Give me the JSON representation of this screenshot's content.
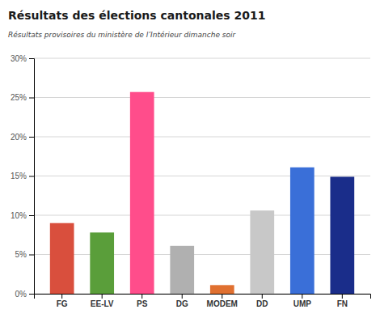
{
  "chart_data": {
    "type": "bar",
    "title": "Résultats des élections cantonales 2011",
    "subtitle": "Résultats provisoires du ministère de l’Intérieur dimanche soir",
    "categories": [
      "FG",
      "EE-LV",
      "PS",
      "DG",
      "MODEM",
      "DD",
      "UMP",
      "FN"
    ],
    "values": [
      9.0,
      7.8,
      25.7,
      6.1,
      1.1,
      10.6,
      16.1,
      14.9
    ],
    "colors": [
      "#d94f3d",
      "#5a9e3a",
      "#ff4d8b",
      "#b0b0b0",
      "#e07030",
      "#c8c8c8",
      "#3a6fd8",
      "#1a2d8a"
    ],
    "ylim": [
      0,
      30
    ],
    "yticks": [
      {
        "value": 0,
        "label": "0%"
      },
      {
        "value": 5,
        "label": "5%"
      },
      {
        "value": 10,
        "label": "10%"
      },
      {
        "value": 15,
        "label": "15%"
      },
      {
        "value": 20,
        "label": "20%"
      },
      {
        "value": 25,
        "label": "25%"
      },
      {
        "value": 30,
        "label": "30%"
      }
    ],
    "grid": true
  }
}
